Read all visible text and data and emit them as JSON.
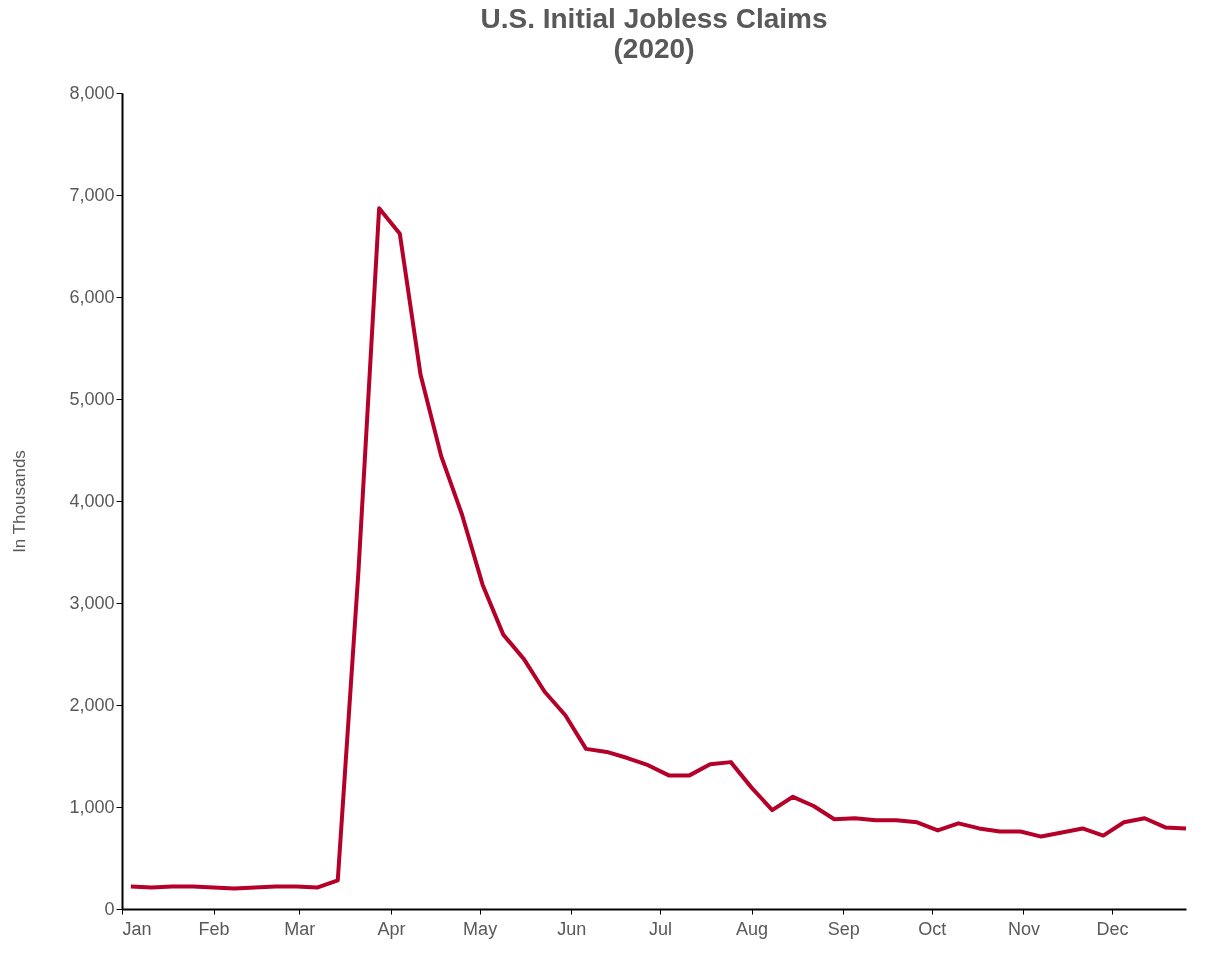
{
  "chart_data": {
    "type": "line",
    "title": [
      "U.S. Initial Jobless Claims",
      "(2020)"
    ],
    "ylabel": "In Thousands",
    "x": [
      "2020-01-04",
      "2020-01-11",
      "2020-01-18",
      "2020-01-25",
      "2020-02-01",
      "2020-02-08",
      "2020-02-15",
      "2020-02-22",
      "2020-02-29",
      "2020-03-07",
      "2020-03-14",
      "2020-03-21",
      "2020-03-28",
      "2020-04-04",
      "2020-04-11",
      "2020-04-18",
      "2020-04-25",
      "2020-05-02",
      "2020-05-09",
      "2020-05-16",
      "2020-05-23",
      "2020-05-30",
      "2020-06-06",
      "2020-06-13",
      "2020-06-20",
      "2020-06-27",
      "2020-07-04",
      "2020-07-11",
      "2020-07-18",
      "2020-07-25",
      "2020-08-01",
      "2020-08-08",
      "2020-08-15",
      "2020-08-22",
      "2020-08-29",
      "2020-09-05",
      "2020-09-12",
      "2020-09-19",
      "2020-09-26",
      "2020-10-03",
      "2020-10-10",
      "2020-10-17",
      "2020-10-24",
      "2020-10-31",
      "2020-11-07",
      "2020-11-14",
      "2020-11-21",
      "2020-11-28",
      "2020-12-05",
      "2020-12-12",
      "2020-12-19",
      "2020-12-26"
    ],
    "series": [
      {
        "color": "#b5002a",
        "values": [
          220,
          210,
          220,
          220,
          210,
          200,
          210,
          220,
          220,
          210,
          280,
          3310,
          6870,
          6620,
          5240,
          4440,
          3870,
          3180,
          2690,
          2450,
          2130,
          1900,
          1570,
          1540,
          1480,
          1410,
          1310,
          1310,
          1420,
          1440,
          1190,
          970,
          1100,
          1010,
          880,
          890,
          870,
          870,
          850,
          770,
          840,
          790,
          760,
          760,
          710,
          750,
          790,
          720,
          850,
          890,
          800,
          790
        ]
      }
    ],
    "xlim": [
      "2020-01-01",
      "2020-12-26"
    ],
    "xticks": [
      {
        "value": "2020-01-01",
        "label": "Jan"
      },
      {
        "value": "2020-02-01",
        "label": "Feb"
      },
      {
        "value": "2020-03-01",
        "label": "Mar"
      },
      {
        "value": "2020-04-01",
        "label": "Apr"
      },
      {
        "value": "2020-05-01",
        "label": "May"
      },
      {
        "value": "2020-06-01",
        "label": "Jun"
      },
      {
        "value": "2020-07-01",
        "label": "Jul"
      },
      {
        "value": "2020-08-01",
        "label": "Aug"
      },
      {
        "value": "2020-09-01",
        "label": "Sep"
      },
      {
        "value": "2020-10-01",
        "label": "Oct"
      },
      {
        "value": "2020-11-01",
        "label": "Nov"
      },
      {
        "value": "2020-12-01",
        "label": "Dec"
      }
    ],
    "ylim": [
      0,
      8000
    ],
    "yticks": [
      0,
      {
        "value": 1000,
        "label": "1,000"
      },
      {
        "value": 2000,
        "label": "2,000"
      },
      {
        "value": 3000,
        "label": "3,000"
      },
      {
        "value": 4000,
        "label": "4,000"
      },
      {
        "value": 5000,
        "label": "5,000"
      },
      {
        "value": 6000,
        "label": "6,000"
      },
      {
        "value": 7000,
        "label": "7,000"
      },
      {
        "value": 8000,
        "label": "8,000"
      }
    ],
    "grid": false,
    "marker": "none",
    "line_style": "solid"
  }
}
